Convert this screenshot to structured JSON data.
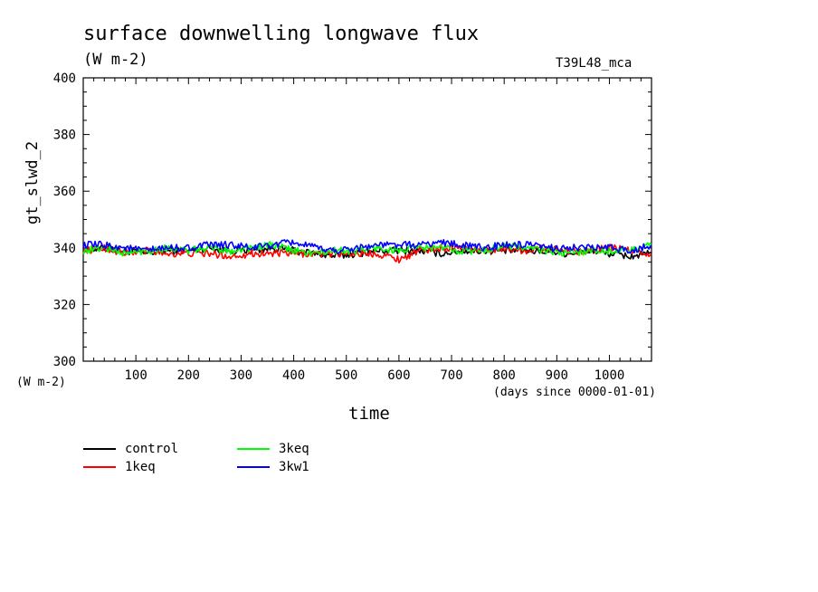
{
  "chart_data": {
    "type": "line",
    "title": "surface downwelling longwave flux",
    "units_label": "(W m-2)",
    "run_id": "T39L48_mca",
    "ylabel": "gt_slwd_2",
    "y_units": "(W m-2)",
    "xlabel": "time",
    "x_units": "(days since 0000-01-01)",
    "xlim": [
      0,
      1080
    ],
    "ylim": [
      300,
      400
    ],
    "x_ticks": [
      100,
      200,
      300,
      400,
      500,
      600,
      700,
      800,
      900,
      1000
    ],
    "y_ticks": [
      300,
      320,
      340,
      360,
      380,
      400
    ],
    "grid": false,
    "legend_position": "bottom-left",
    "series": [
      {
        "name": "control",
        "color": "#000000",
        "x": [
          0,
          40,
          80,
          120,
          160,
          200,
          240,
          280,
          320,
          360,
          400,
          440,
          480,
          520,
          560,
          600,
          640,
          680,
          720,
          760,
          800,
          840,
          880,
          920,
          960,
          1000,
          1040,
          1080
        ],
        "y": [
          339,
          340,
          339,
          338,
          339,
          339,
          340,
          339,
          339,
          340,
          339,
          338,
          337,
          338,
          339,
          339,
          339,
          338,
          339,
          339,
          339,
          339,
          339,
          338,
          339,
          338,
          337,
          338
        ]
      },
      {
        "name": "1keq",
        "color": "#ff0000",
        "x": [
          0,
          40,
          80,
          120,
          160,
          200,
          240,
          280,
          320,
          360,
          400,
          440,
          480,
          520,
          560,
          600,
          640,
          680,
          720,
          760,
          800,
          840,
          880,
          920,
          960,
          1000,
          1040,
          1080
        ],
        "y": [
          339,
          340,
          338,
          339,
          338,
          338,
          338,
          337,
          338,
          338,
          338,
          338,
          338,
          338,
          338,
          336,
          339,
          340,
          340,
          339,
          340,
          339,
          340,
          339,
          339,
          340,
          339,
          338
        ]
      },
      {
        "name": "3keq",
        "color": "#00ff00",
        "x": [
          0,
          40,
          80,
          120,
          160,
          200,
          240,
          280,
          320,
          360,
          400,
          440,
          480,
          520,
          560,
          600,
          640,
          680,
          720,
          760,
          800,
          840,
          880,
          920,
          960,
          1000,
          1040,
          1080
        ],
        "y": [
          339,
          340,
          338,
          339,
          340,
          339,
          340,
          339,
          340,
          341,
          339,
          338,
          339,
          339,
          340,
          339,
          340,
          340,
          339,
          339,
          341,
          340,
          339,
          338,
          339,
          339,
          339,
          341
        ]
      },
      {
        "name": "3kw1",
        "color": "#0000ff",
        "x": [
          0,
          40,
          80,
          120,
          160,
          200,
          240,
          280,
          320,
          360,
          400,
          440,
          480,
          520,
          560,
          600,
          640,
          680,
          720,
          760,
          800,
          840,
          880,
          920,
          960,
          1000,
          1040,
          1080
        ],
        "y": [
          341,
          341,
          340,
          339,
          340,
          340,
          341,
          341,
          340,
          341,
          342,
          340,
          339,
          340,
          341,
          341,
          341,
          342,
          341,
          340,
          341,
          341,
          340,
          340,
          340,
          340,
          339,
          341
        ]
      }
    ]
  }
}
